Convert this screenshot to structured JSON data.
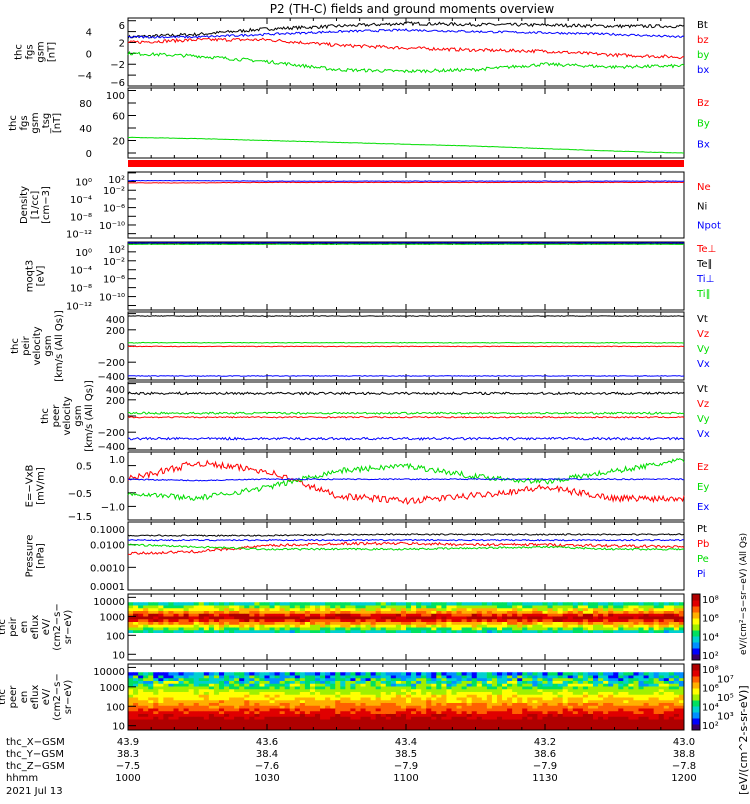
{
  "chart_data": {
    "title": "P2 (TH-C) fields and ground moments overview",
    "type": "line",
    "x_minutes_from_1000": [
      0,
      15,
      30,
      45,
      60,
      75,
      90,
      105,
      120
    ],
    "panels": [
      {
        "ylabel": [
          "thc",
          "fgs",
          "gsm",
          "[nT]"
        ],
        "scale": "linear",
        "ylim": [
          -6,
          6.5
        ],
        "ticks": [
          "6",
          "4",
          "2",
          "0",
          "−2",
          "−4",
          "−6"
        ],
        "tickvals": [
          6,
          4,
          2,
          0,
          -2,
          -4,
          -6
        ],
        "series": [
          {
            "name": "Bt",
            "color": "#000000",
            "values": [
              3,
              3.5,
              4.5,
              5,
              5.5,
              5.3,
              5.2,
              5,
              5
            ],
            "noise": 0.3
          },
          {
            "name": "bz",
            "color": "#ff0000",
            "values": [
              2,
              2.5,
              2.5,
              1.5,
              1,
              0.6,
              0.4,
              -0.3,
              -0.7
            ],
            "noise": 0.3
          },
          {
            "name": "by",
            "color": "#00dd00",
            "values": [
              0,
              -0.5,
              -1.5,
              -3,
              -3.3,
              -3,
              -2,
              -2.5,
              -2.3
            ],
            "noise": 0.3
          },
          {
            "name": "bx",
            "color": "#0000ff",
            "values": [
              3,
              3,
              3.5,
              4,
              4.3,
              4,
              3.8,
              3.5,
              3
            ],
            "noise": 0.2
          }
        ]
      },
      {
        "ylabel": [
          "thc",
          "fgs",
          "gsm",
          "_tsg",
          "[nT]"
        ],
        "scale": "linear",
        "ylim": [
          -8,
          104
        ],
        "ticks": [
          "100",
          "80",
          "60",
          "40",
          "20",
          "0"
        ],
        "tickvals": [
          100,
          80,
          60,
          40,
          20,
          0
        ],
        "series": [
          {
            "name": "Bz",
            "color": "#ff0000",
            "values": [
              null
            ]
          },
          {
            "name": "By",
            "color": "#00dd00",
            "values": [
              25,
              23,
              20,
              17,
              14,
              11,
              7,
              3,
              0
            ],
            "noise": 0.3
          },
          {
            "name": "Bx",
            "color": "#0000ff",
            "values": [
              null
            ]
          }
        ]
      },
      {
        "ylabel": [
          "Density",
          "[1/cc]",
          "[cm−3]"
        ],
        "scale": "log",
        "ylim": [
          -13,
          2.2
        ],
        "ticks": [
          "10²",
          "10⁰",
          "10⁻²",
          "10⁻⁴",
          "10⁻⁶",
          "10⁻⁸",
          "10⁻¹⁰",
          "10⁻¹²"
        ],
        "tickvals": [
          2,
          0,
          -2,
          -4,
          -6,
          -8,
          -10,
          -12
        ],
        "series": [
          {
            "name": "Ne",
            "color": "#ff0000",
            "values": [
              -0.3,
              -0.3,
              -0.2,
              -0.2,
              -0.2,
              -0.2,
              -0.2,
              -0.2,
              -0.2
            ],
            "noise": 0.05
          },
          {
            "name": "Ni",
            "color": "#000000",
            "values": [
              null
            ]
          },
          {
            "name": "Npot",
            "color": "#0000ff",
            "values": [
              0.2,
              0.2,
              0.1,
              0.1,
              0.1,
              0.1,
              0.1,
              0.1,
              0.1
            ],
            "noise": 0.05
          }
        ]
      },
      {
        "ylabel": [
          "moqt3",
          "[eV]"
        ],
        "scale": "log",
        "ylim": [
          -13,
          2.2
        ],
        "ticks": [
          "10²",
          "10⁰",
          "10⁻²",
          "10⁻⁴",
          "10⁻⁶",
          "10⁻⁸",
          "10⁻¹⁰",
          "10⁻¹²"
        ],
        "tickvals": [
          2,
          0,
          -2,
          -4,
          -6,
          -8,
          -10,
          -12
        ],
        "series": [
          {
            "name": "Te⊥",
            "color": "#ff0000",
            "values": [
              1.9,
              1.9,
              1.9,
              1.9,
              1.9,
              1.9,
              1.9,
              1.9,
              1.9
            ],
            "noise": 0.05
          },
          {
            "name": "Te∥",
            "color": "#000000",
            "values": [
              1.8,
              1.8,
              1.8,
              1.8,
              1.8,
              1.8,
              1.8,
              1.8,
              1.8
            ],
            "noise": 0.05
          },
          {
            "name": "Ti⊥",
            "color": "#0000ff",
            "values": [
              2.0,
              2.0,
              2.0,
              2.0,
              2.0,
              2.0,
              2.0,
              2.0,
              2.0
            ],
            "noise": 0.05
          },
          {
            "name": "Ti∥",
            "color": "#00dd00",
            "values": [
              1.7,
              1.7,
              1.7,
              1.7,
              1.7,
              1.7,
              1.7,
              1.7,
              1.7
            ],
            "noise": 0.05
          }
        ]
      },
      {
        "ylabel": [
          "thc",
          "peir",
          "velocity",
          "gsm",
          "[km/s (All Qs)]"
        ],
        "scale": "linear",
        "ylim": [
          -420,
          420
        ],
        "ticks": [
          "400",
          "200",
          "0",
          "−200",
          "−400"
        ],
        "tickvals": [
          400,
          200,
          0,
          -200,
          -400
        ],
        "series": [
          {
            "name": "Vt",
            "color": "#000000",
            "values": [
              370,
              370,
              370,
              370,
              370,
              370,
              370,
              370,
              370
            ],
            "noise": 4
          },
          {
            "name": "Vz",
            "color": "#ff0000",
            "values": [
              -5,
              -5,
              -5,
              -5,
              -5,
              -5,
              -5,
              -5,
              -5
            ],
            "noise": 4
          },
          {
            "name": "Vy",
            "color": "#00dd00",
            "values": [
              40,
              40,
              40,
              40,
              40,
              40,
              40,
              40,
              40
            ],
            "noise": 4
          },
          {
            "name": "Vx",
            "color": "#0000ff",
            "values": [
              -370,
              -370,
              -370,
              -370,
              -370,
              -370,
              -370,
              -370,
              -370
            ],
            "noise": 4
          }
        ]
      },
      {
        "ylabel": [
          "thc",
          "peer",
          "velocity",
          "gsm",
          "[km/s (All Qs)]"
        ],
        "scale": "linear",
        "ylim": [
          -420,
          420
        ],
        "ticks": [
          "400",
          "200",
          "0",
          "−200",
          "−400"
        ],
        "tickvals": [
          400,
          200,
          0,
          -200,
          -400
        ],
        "series": [
          {
            "name": "Vt",
            "color": "#000000",
            "values": [
              280,
              280,
              280,
              280,
              280,
              280,
              280,
              280,
              280
            ],
            "noise": 15
          },
          {
            "name": "Vz",
            "color": "#ff0000",
            "values": [
              -15,
              -15,
              -15,
              -15,
              -15,
              -15,
              -15,
              -15,
              -15
            ],
            "noise": 8
          },
          {
            "name": "Vy",
            "color": "#00dd00",
            "values": [
              35,
              35,
              35,
              35,
              35,
              35,
              35,
              35,
              35
            ],
            "noise": 12
          },
          {
            "name": "Vx",
            "color": "#0000ff",
            "values": [
              -280,
              -280,
              -280,
              -280,
              -280,
              -280,
              -280,
              -280,
              -280
            ],
            "noise": 15
          }
        ]
      },
      {
        "ylabel": [
          "E=−VxB",
          "[mV/m]"
        ],
        "scale": "linear",
        "ylim": [
          -1.5,
          1.0
        ],
        "ticks": [
          "1.0",
          "0.5",
          "0.0",
          "−0.5",
          "−1.0",
          "−1.5"
        ],
        "tickvals": [
          1,
          0.5,
          0,
          -0.5,
          -1,
          -1.5
        ],
        "series": [
          {
            "name": "Ez",
            "color": "#ff0000",
            "values": [
              0,
              0.6,
              0.3,
              -0.6,
              -0.8,
              -0.6,
              -0.3,
              -0.7,
              -0.7
            ],
            "noise": 0.12
          },
          {
            "name": "Ey",
            "color": "#00dd00",
            "values": [
              -0.5,
              -0.7,
              -0.3,
              0.3,
              0.5,
              0.1,
              -0.1,
              0.3,
              0.7
            ],
            "noise": 0.1
          },
          {
            "name": "Ex",
            "color": "#0000ff",
            "values": [
              0,
              -0.05,
              0,
              0,
              0,
              0,
              0,
              0,
              0
            ],
            "noise": 0.02
          }
        ]
      },
      {
        "ylabel": [
          "Pressure",
          "[nPa]"
        ],
        "scale": "log",
        "ylim": [
          -4,
          -1
        ],
        "ticks": [
          "0.1000",
          "0.0100",
          "0.0010",
          "0.0001"
        ],
        "tickvals": [
          -1,
          -2,
          -3,
          -4
        ],
        "series": [
          {
            "name": "Pt",
            "color": "#000000",
            "values": [
              -1.6,
              -1.6,
              -1.6,
              -1.55,
              -1.55,
              -1.55,
              -1.55,
              -1.55,
              -1.55
            ],
            "noise": 0.03
          },
          {
            "name": "Pb",
            "color": "#ff0000",
            "values": [
              -2.4,
              -2.3,
              -2.05,
              -1.95,
              -1.95,
              -2.0,
              -2.0,
              -2.05,
              -2.1
            ],
            "noise": 0.06
          },
          {
            "name": "Pe",
            "color": "#00dd00",
            "values": [
              -2.0,
              -2.1,
              -2.2,
              -2.2,
              -2.2,
              -2.15,
              -2.1,
              -2.2,
              -2.2
            ],
            "noise": 0.04
          },
          {
            "name": "Pi",
            "color": "#0000ff",
            "values": [
              -1.8,
              -1.8,
              -1.8,
              -1.8,
              -1.8,
              -1.8,
              -1.8,
              -1.8,
              -1.8
            ],
            "noise": 0.03
          }
        ]
      }
    ],
    "spectrograms": [
      {
        "ylabel": [
          "thc",
          "peir",
          "en",
          "eflux",
          "eV/",
          "(cm2−s−",
          "sr−eV)"
        ],
        "type": "heatmap",
        "ylim_energy_eV": [
          5,
          15000
        ],
        "ticks": [
          "10000",
          "1000",
          "100",
          "10"
        ],
        "colorbar_ticks": [
          "10⁸",
          "10⁶",
          "10⁴",
          "10²"
        ]
      },
      {
        "ylabel": [
          "thc",
          "peer",
          "en",
          "eflux",
          "eV/",
          "(cm2−s−",
          "sr−eV)"
        ],
        "type": "heatmap",
        "ylim_energy_eV": [
          6,
          15000
        ],
        "ticks": [
          "10000",
          "1000",
          "100",
          "10"
        ],
        "colorbar_ticks": [
          "10⁸",
          "10⁷",
          "10⁶",
          "10⁵",
          "10⁴",
          "10³",
          "10²"
        ]
      }
    ],
    "colorbar_label": "[eV/(cm^2-s-sr-eV)]",
    "colorbar_label_overlap": "eV/(cm²−s−sr−eV) (All Qs)",
    "xaxis": {
      "rows": [
        {
          "label": "thc_X−GSM",
          "values": [
            "43.9",
            "43.6",
            "43.4",
            "43.2",
            "43.0"
          ]
        },
        {
          "label": "thc_Y−GSM",
          "values": [
            "38.3",
            "38.4",
            "38.5",
            "38.6",
            "38.8"
          ]
        },
        {
          "label": "thc_Z−GSM",
          "values": [
            "−7.5",
            "−7.6",
            "−7.9",
            "−7.9",
            "−7.8"
          ]
        },
        {
          "label": "hhmm",
          "values": [
            "1000",
            "1030",
            "1100",
            "1130",
            "1200"
          ]
        }
      ],
      "date": "2021 Jul 13"
    }
  }
}
